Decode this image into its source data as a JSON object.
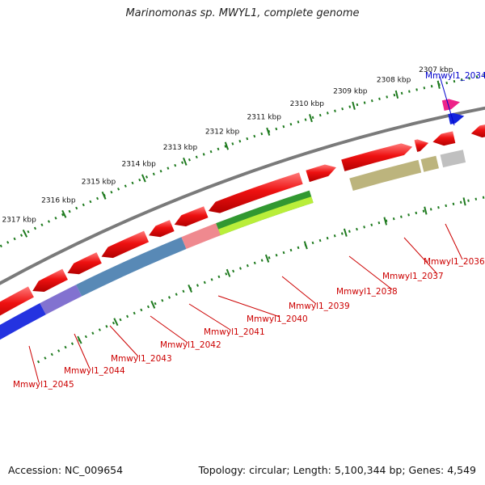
{
  "title": "Marinomonas sp. MWYL1, complete genome",
  "footer": {
    "accession": "Accession: NC_009654",
    "summary": "Topology: circular; Length: 5,100,344 bp; Genes: 4,549"
  },
  "scale_ticks": [
    "2307 kbp",
    "2308 kbp",
    "2309 kbp",
    "2310 kbp",
    "2311 kbp",
    "2312 kbp",
    "2313 kbp",
    "2314 kbp",
    "2315 kbp",
    "2316 kbp",
    "2317 kbp"
  ],
  "gene_labels": [
    {
      "text": "Mmwyl1_2034",
      "color": "#0000cc"
    },
    {
      "text": "Mmwyl1_2036",
      "color": "#cc0000"
    },
    {
      "text": "Mmwyl1_2037",
      "color": "#cc0000"
    },
    {
      "text": "Mmwyl1_2038",
      "color": "#cc0000"
    },
    {
      "text": "Mmwyl1_2039",
      "color": "#cc0000"
    },
    {
      "text": "Mmwyl1_2040",
      "color": "#cc0000"
    },
    {
      "text": "Mmwyl1_2041",
      "color": "#cc0000"
    },
    {
      "text": "Mmwyl1_2042",
      "color": "#cc0000"
    },
    {
      "text": "Mmwyl1_2043",
      "color": "#cc0000"
    },
    {
      "text": "Mmwyl1_2044",
      "color": "#cc0000"
    },
    {
      "text": "Mmwyl1_2045",
      "color": "#cc0000"
    }
  ],
  "colors": {
    "backbone": "#7a7a7a",
    "scale": "#1e7a1e",
    "cds": "#ee1111",
    "track_blue": "#1122dd",
    "track_purple": "#7766cc",
    "track_steelblue": "#4a7fb0",
    "track_pink": "#ee7f86",
    "track_green": "#1f8f1f",
    "track_lime": "#b9ee3a",
    "track_olive": "#b6ae72",
    "track_gray": "#bbbbbb",
    "track_magenta": "#ee2288"
  }
}
